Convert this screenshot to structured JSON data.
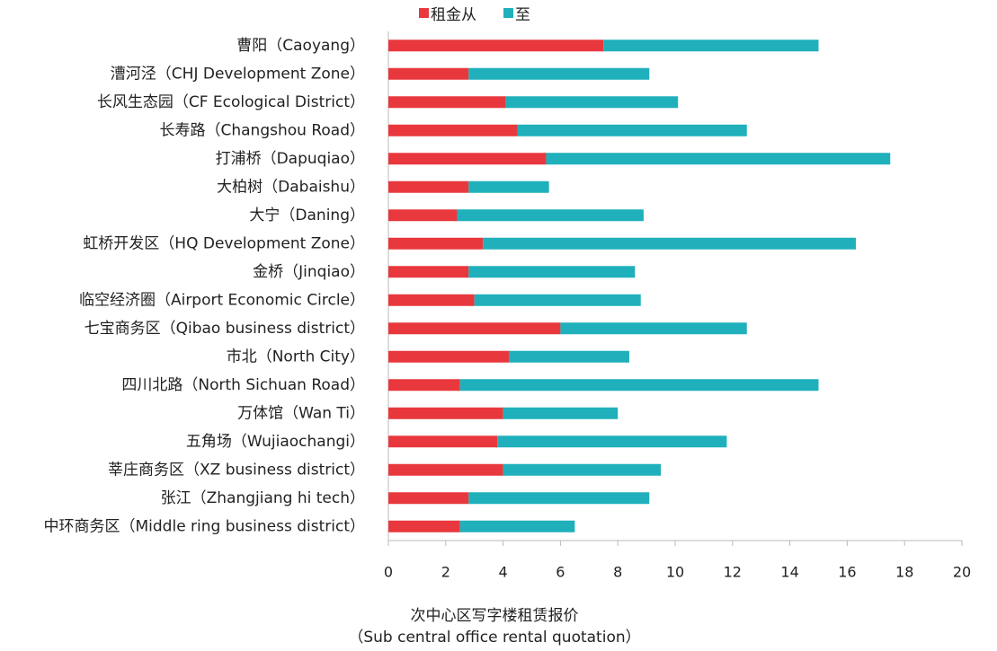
{
  "chart_data": {
    "type": "bar",
    "orientation": "horizontal",
    "stacked": true,
    "x_label": [
      "次中心区写字楼租赁报价",
      "（Sub central office rental quotation）"
    ],
    "categories": [
      "曹阳（Caoyang）",
      "漕河泾（CHJ Development Zone）",
      "长风生态园（CF Ecological District）",
      "长寿路（Changshou Road）",
      "打浦桥（Dapuqiao）",
      "大柏树（Dabaishu）",
      "大宁（Daning）",
      "虹桥开发区（HQ Development Zone）",
      "金桥（Jinqiao）",
      "临空经济圈（Airport Economic Circle）",
      "七宝商务区（Qibao business district）",
      "市北（North City）",
      "四川北路（North Sichuan Road）",
      "万体馆（Wan Ti）",
      "五角场（Wujiaochangi）",
      "莘庄商务区（XZ business district）",
      "张江（Zhangjiang hi tech）",
      "中环商务区（Middle ring business district）"
    ],
    "series": [
      {
        "name": "租金从",
        "color": "#e8383d",
        "values": [
          7.5,
          2.8,
          4.1,
          4.5,
          5.5,
          2.8,
          2.4,
          3.3,
          2.8,
          3.0,
          6.0,
          4.2,
          2.5,
          4.0,
          3.8,
          4.0,
          2.8,
          2.5
        ]
      },
      {
        "name": "至",
        "color": "#1fb0bb",
        "values": [
          7.5,
          6.3,
          6.0,
          8.0,
          12.0,
          2.8,
          6.5,
          13.0,
          5.8,
          5.8,
          6.5,
          4.2,
          12.5,
          4.0,
          8.0,
          5.5,
          6.3,
          4.0
        ]
      }
    ],
    "xlim": [
      0,
      20
    ],
    "xticks": [
      0,
      2,
      4,
      6,
      8,
      10,
      12,
      14,
      16,
      18,
      20
    ],
    "legend": "top"
  }
}
